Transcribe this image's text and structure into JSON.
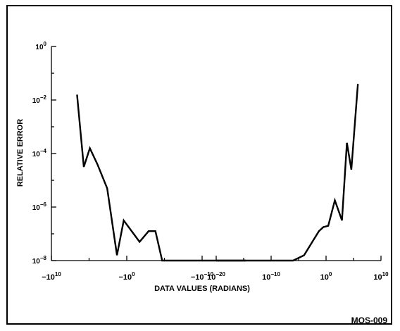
{
  "chart_data": {
    "type": "line",
    "xlabel": "DATA VALUES (RADIANS)",
    "ylabel": "RELATIVE ERROR",
    "y_scale": "log",
    "ylim_exponent": [
      -8,
      0
    ],
    "y_ticks": [
      {
        "exp": 0,
        "base": "10",
        "sup": "0"
      },
      {
        "exp": -2,
        "base": "10",
        "sup": "−2"
      },
      {
        "exp": -4,
        "base": "10",
        "sup": "−4"
      },
      {
        "exp": -6,
        "base": "10",
        "sup": "−6"
      },
      {
        "exp": -8,
        "base": "10",
        "sup": "−8"
      }
    ],
    "x_axis_segments": [
      {
        "name": "negative",
        "range": [
          -10,
          10
        ],
        "tick_labels": [
          {
            "pos": -10,
            "base": "−10",
            "sup": "10"
          },
          {
            "pos": 0,
            "base": "−10",
            "sup": "0"
          },
          {
            "pos": 10,
            "base": "−10",
            "sup": "−10"
          }
        ]
      },
      {
        "name": "positive",
        "range": [
          -20,
          10
        ],
        "tick_labels": [
          {
            "pos": -20,
            "base": "10",
            "sup": "−20"
          },
          {
            "pos": -10,
            "base": "10",
            "sup": "−10"
          },
          {
            "pos": 0,
            "base": "10",
            "sup": "0"
          },
          {
            "pos": 10,
            "base": "10",
            "sup": "10"
          }
        ]
      }
    ],
    "series": [
      {
        "segment": "negative",
        "points": [
          [
            -6.6,
            -1.8
          ],
          [
            -5.7,
            -4.5
          ],
          [
            -4.9,
            -3.8
          ],
          [
            -3.9,
            -4.4
          ],
          [
            -2.6,
            -5.3
          ],
          [
            -1.3,
            -7.8
          ],
          [
            -0.4,
            -6.5
          ],
          [
            1.7,
            -7.3
          ],
          [
            2.9,
            -6.9
          ],
          [
            3.8,
            -6.9
          ],
          [
            4.7,
            -8.0
          ],
          [
            15.8,
            -8.0
          ]
        ]
      },
      {
        "segment": "positive",
        "points": [
          [
            -20.0,
            -8.0
          ],
          [
            -6.0,
            -8.0
          ],
          [
            -4.0,
            -7.8
          ],
          [
            -2.5,
            -7.3
          ],
          [
            -1.3,
            -6.9
          ],
          [
            -0.5,
            -6.75
          ],
          [
            0.4,
            -6.7
          ],
          [
            1.6,
            -5.75
          ],
          [
            2.9,
            -6.5
          ],
          [
            3.8,
            -3.6
          ],
          [
            4.6,
            -4.6
          ],
          [
            5.8,
            -1.4
          ]
        ]
      }
    ]
  },
  "figure_id": "MOS-009"
}
